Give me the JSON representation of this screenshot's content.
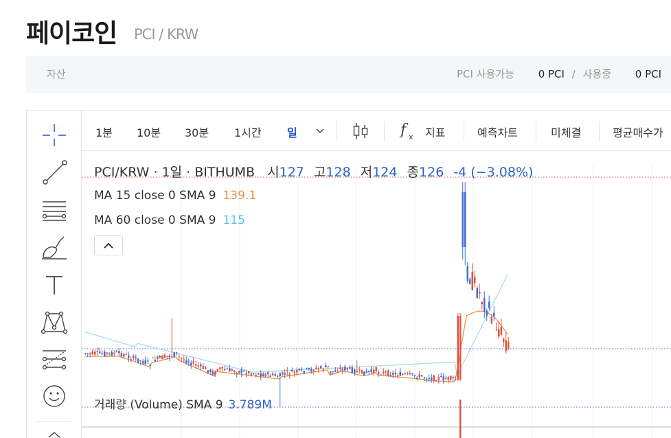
{
  "header": {
    "title": "페이코인",
    "pair": "PCI / KRW"
  },
  "assets": {
    "label": "자산",
    "available_label": "PCI 사용가능",
    "available_value": "0 PCI",
    "inuse_label": "사용중",
    "inuse_value": "0 PCI"
  },
  "toolbar": {
    "intervals": [
      "1분",
      "10분",
      "30분",
      "1시간",
      "일"
    ],
    "active_interval": "일",
    "indicator_label": "지표",
    "forecast_label": "예측차트",
    "unfilled_label": "미체결",
    "avg_price_label": "평균매수가"
  },
  "legend": {
    "symbol": "PCI/KRW · 1일 · BITHUMB",
    "open_label": "시",
    "open": "127",
    "high_label": "고",
    "high": "128",
    "low_label": "저",
    "low": "124",
    "close_label": "종",
    "close": "126",
    "change": "-4 (−3.08%)",
    "ma15_label": "MA 15 close 0 SMA 9",
    "ma15_value": "139.1",
    "ma60_label": "MA 60 close 0 SMA 9",
    "ma60_value": "115",
    "volume_label": "거래량 (Volume) SMA 9",
    "volume_value": "3.789M"
  },
  "colors": {
    "up": "#e0533f",
    "down": "#3d6fd3",
    "ma15": "#f0904a",
    "ma60": "#a8dcee",
    "accent": "#1a56d8"
  },
  "tools": [
    "crosshair-icon",
    "trendline-icon",
    "fib-icon",
    "brush-icon",
    "text-icon",
    "pattern-icon",
    "forecast-icon",
    "emoji-icon"
  ]
}
